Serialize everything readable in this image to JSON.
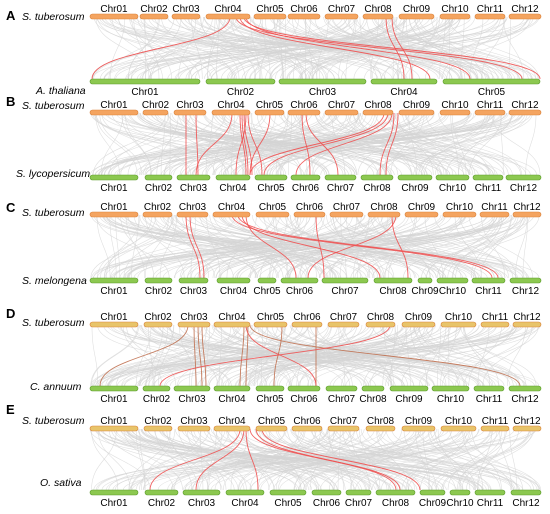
{
  "colors": {
    "top_bar": "#f4a460",
    "top_bar_stroke": "#d9823a",
    "top_bar_yellow": "#e8c46a",
    "bottom_bar": "#8cc850",
    "bottom_bar_stroke": "#5a9a2a",
    "background_link": "#d4d4d4",
    "highlight_link": "#f05050",
    "highlight_link_dark": "#c07050"
  },
  "panels": [
    {
      "letter": "A",
      "top_species": "S. tuberosum",
      "bottom_species": "A. thaliana",
      "top_chromosomes": [
        "Chr01",
        "Chr02",
        "Chr03",
        "Chr04",
        "Chr05",
        "Chr06",
        "Chr07",
        "Chr08",
        "Chr09",
        "Chr10",
        "Chr11",
        "Chr12"
      ],
      "bottom_chromosomes": [
        "Chr01",
        "Chr02",
        "Chr03",
        "Chr04",
        "Chr05"
      ]
    },
    {
      "letter": "B",
      "top_species": "S. tuberosum",
      "bottom_species": "S. lycopersicum",
      "top_chromosomes": [
        "Chr01",
        "Chr02",
        "Chr03",
        "Chr04",
        "Chr05",
        "Chr06",
        "Chr07",
        "Chr08",
        "Chr09",
        "Chr10",
        "Chr11",
        "Chr12"
      ],
      "bottom_chromosomes": [
        "Chr01",
        "Chr02",
        "Chr03",
        "Chr04",
        "Chr05",
        "Chr06",
        "Chr07",
        "Chr08",
        "Chr09",
        "Chr10",
        "Chr11",
        "Chr12"
      ]
    },
    {
      "letter": "C",
      "top_species": "S. tuberosum",
      "bottom_species": "S. melongena",
      "top_chromosomes": [
        "Chr01",
        "Chr02",
        "Chr03",
        "Chr04",
        "Chr05",
        "Chr06",
        "Chr07",
        "Chr08",
        "Chr09",
        "Chr10",
        "Chr11",
        "Chr12"
      ],
      "bottom_chromosomes": [
        "Chr01",
        "Chr02",
        "Chr03",
        "Chr04",
        "Chr05",
        "Chr06",
        "Chr07",
        "Chr08",
        "Chr09",
        "Chr10",
        "Chr11",
        "Chr12"
      ]
    },
    {
      "letter": "D",
      "top_species": "S. tuberosum",
      "bottom_species": "C. annuum",
      "top_chromosomes": [
        "Chr01",
        "Chr02",
        "Chr03",
        "Chr04",
        "Chr05",
        "Chr06",
        "Chr07",
        "Chr08",
        "Chr09",
        "Chr10",
        "Chr11",
        "Chr12"
      ],
      "bottom_chromosomes": [
        "Chr01",
        "Chr02",
        "Chr03",
        "Chr04",
        "Chr05",
        "Chr06",
        "Chr07",
        "Chr08",
        "Chr09",
        "Chr10",
        "Chr11",
        "Chr12"
      ]
    },
    {
      "letter": "E",
      "top_species": "S. tuberosum",
      "bottom_species": "O. sativa",
      "top_chromosomes": [
        "Chr01",
        "Chr02",
        "Chr03",
        "Chr04",
        "Chr05",
        "Chr06",
        "Chr07",
        "Chr08",
        "Chr09",
        "Chr10",
        "Chr11",
        "Chr12"
      ],
      "bottom_chromosomes": [
        "Chr01",
        "Chr02",
        "Chr03",
        "Chr04",
        "Chr05",
        "Chr06",
        "Chr07",
        "Chr08",
        "Chr09",
        "Chr10",
        "Chr11",
        "Chr12"
      ]
    }
  ]
}
